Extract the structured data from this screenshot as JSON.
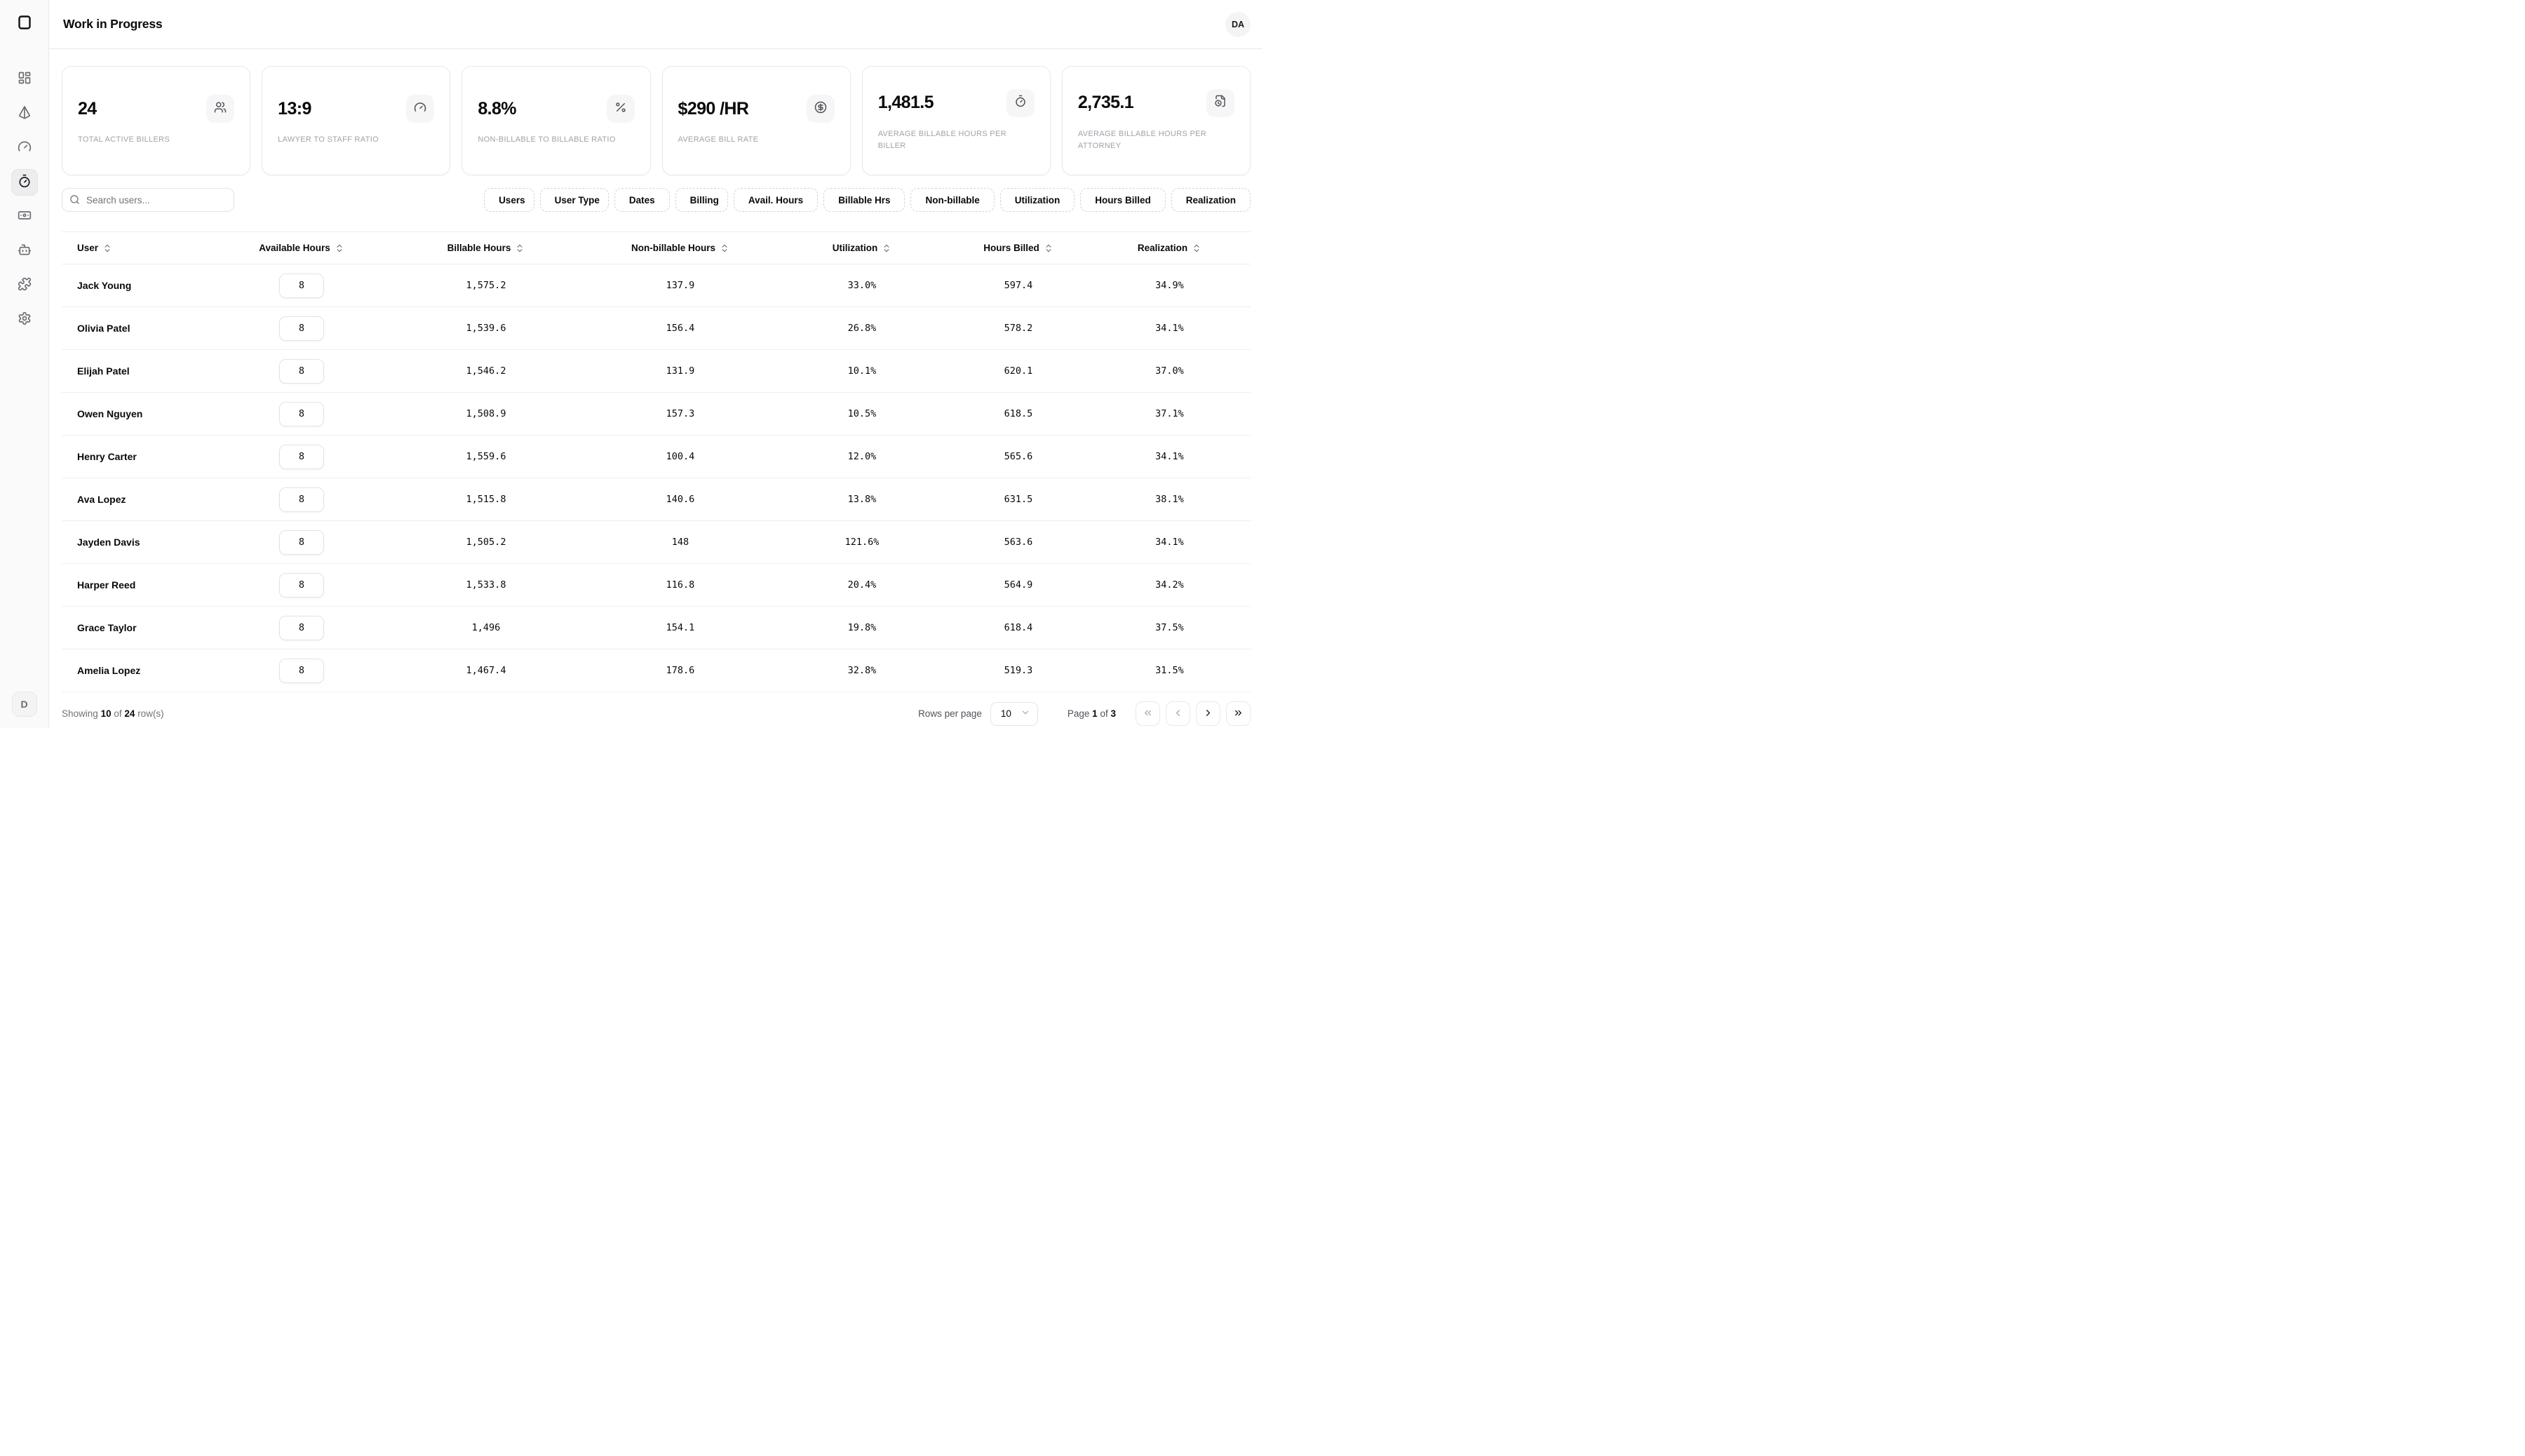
{
  "header": {
    "title": "Work in Progress",
    "avatar_initials": "DA"
  },
  "sidebar": {
    "logo_icon": "logo-square",
    "items": [
      {
        "icon": "dashboard",
        "active": false
      },
      {
        "icon": "pyramid",
        "active": false
      },
      {
        "icon": "gauge",
        "active": false
      },
      {
        "icon": "timer",
        "active": true
      },
      {
        "icon": "banknote",
        "active": false
      },
      {
        "icon": "bot",
        "active": false
      },
      {
        "icon": "puzzle",
        "active": false
      },
      {
        "icon": "settings",
        "active": false
      }
    ],
    "bottom_avatar_initial": "D"
  },
  "kpis": [
    {
      "value": "24",
      "label": "TOTAL ACTIVE BILLERS",
      "icon": "users"
    },
    {
      "value": "13:9",
      "label": "LAWYER TO STAFF RATIO",
      "icon": "gauge"
    },
    {
      "value": "8.8%",
      "label": "NON-BILLABLE TO BILLABLE RATIO",
      "icon": "percent"
    },
    {
      "value": "$290 /HR",
      "label": "AVERAGE BILL RATE",
      "icon": "circle-dollar"
    },
    {
      "value": "1,481.5",
      "label": "AVERAGE BILLABLE HOURS PER BILLER",
      "icon": "timer"
    },
    {
      "value": "2,735.1",
      "label": "AVERAGE BILLABLE HOURS PER ATTORNEY",
      "icon": "file-clock"
    }
  ],
  "toolbar": {
    "search_placeholder": "Search users...",
    "filters": [
      {
        "label": "Users",
        "icon": "book-user",
        "sort": false
      },
      {
        "label": "User Type",
        "icon": "users",
        "sort": false
      },
      {
        "label": "Dates",
        "icon": "calendar-days",
        "sort": true
      },
      {
        "label": "Billing",
        "icon": "file-clock",
        "sort": false
      },
      {
        "label": "Avail. Hours",
        "icon": "gauge",
        "sort": true
      },
      {
        "label": "Billable Hrs",
        "icon": "timer",
        "sort": true
      },
      {
        "label": "Non-billable",
        "icon": "timer",
        "sort": true
      },
      {
        "label": "Utilization",
        "icon": "timer",
        "sort": true
      },
      {
        "label": "Hours Billed",
        "icon": "timer",
        "sort": true
      },
      {
        "label": "Realization",
        "icon": "timer",
        "sort": true
      }
    ]
  },
  "table": {
    "columns": [
      {
        "label": "User",
        "sortable": true
      },
      {
        "label": "Available Hours",
        "sortable": true
      },
      {
        "label": "Billable Hours",
        "sortable": true
      },
      {
        "label": "Non-billable Hours",
        "sortable": true
      },
      {
        "label": "Utilization",
        "sortable": true
      },
      {
        "label": "Hours Billed",
        "sortable": true
      },
      {
        "label": "Realization",
        "sortable": true
      }
    ],
    "rows": [
      {
        "user": "Jack Young",
        "available_hours": "8",
        "billable_hours": "1,575.2",
        "non_billable_hours": "137.9",
        "utilization": "33.0%",
        "hours_billed": "597.4",
        "realization": "34.9%"
      },
      {
        "user": "Olivia Patel",
        "available_hours": "8",
        "billable_hours": "1,539.6",
        "non_billable_hours": "156.4",
        "utilization": "26.8%",
        "hours_billed": "578.2",
        "realization": "34.1%"
      },
      {
        "user": "Elijah Patel",
        "available_hours": "8",
        "billable_hours": "1,546.2",
        "non_billable_hours": "131.9",
        "utilization": "10.1%",
        "hours_billed": "620.1",
        "realization": "37.0%"
      },
      {
        "user": "Owen Nguyen",
        "available_hours": "8",
        "billable_hours": "1,508.9",
        "non_billable_hours": "157.3",
        "utilization": "10.5%",
        "hours_billed": "618.5",
        "realization": "37.1%"
      },
      {
        "user": "Henry Carter",
        "available_hours": "8",
        "billable_hours": "1,559.6",
        "non_billable_hours": "100.4",
        "utilization": "12.0%",
        "hours_billed": "565.6",
        "realization": "34.1%"
      },
      {
        "user": "Ava Lopez",
        "available_hours": "8",
        "billable_hours": "1,515.8",
        "non_billable_hours": "140.6",
        "utilization": "13.8%",
        "hours_billed": "631.5",
        "realization": "38.1%"
      },
      {
        "user": "Jayden Davis",
        "available_hours": "8",
        "billable_hours": "1,505.2",
        "non_billable_hours": "148",
        "utilization": "121.6%",
        "hours_billed": "563.6",
        "realization": "34.1%"
      },
      {
        "user": "Harper Reed",
        "available_hours": "8",
        "billable_hours": "1,533.8",
        "non_billable_hours": "116.8",
        "utilization": "20.4%",
        "hours_billed": "564.9",
        "realization": "34.2%"
      },
      {
        "user": "Grace Taylor",
        "available_hours": "8",
        "billable_hours": "1,496",
        "non_billable_hours": "154.1",
        "utilization": "19.8%",
        "hours_billed": "618.4",
        "realization": "37.5%"
      },
      {
        "user": "Amelia Lopez",
        "available_hours": "8",
        "billable_hours": "1,467.4",
        "non_billable_hours": "178.6",
        "utilization": "32.8%",
        "hours_billed": "519.3",
        "realization": "31.5%"
      }
    ]
  },
  "footer": {
    "showing_prefix": "Showing",
    "shown_count": "10",
    "of_word": "of",
    "total_count": "24",
    "rows_suffix": "row(s)",
    "rows_per_page_label": "Rows per page",
    "rows_per_page_value": "10",
    "page_word": "Page",
    "page_current": "1",
    "of_word2": "of",
    "page_total": "3"
  },
  "colors": {
    "accent_text": "#09090b",
    "muted_text": "#71717a",
    "label_gray": "#a1a1aa",
    "border": "#e4e4e7",
    "sidebar_bg": "#fafafa"
  }
}
